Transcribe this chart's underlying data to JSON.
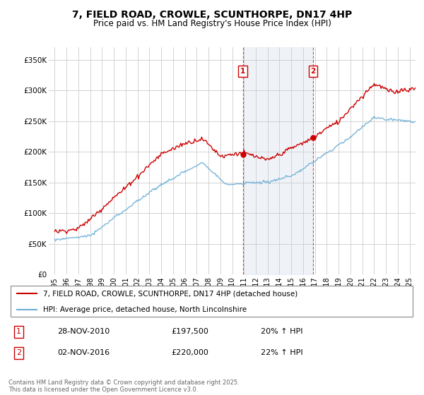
{
  "title": "7, FIELD ROAD, CROWLE, SCUNTHORPE, DN17 4HP",
  "subtitle": "Price paid vs. HM Land Registry's House Price Index (HPI)",
  "title_fontsize": 10,
  "subtitle_fontsize": 8.5,
  "background_color": "#ffffff",
  "plot_bg_color": "#ffffff",
  "grid_color": "#cccccc",
  "ylabel_ticks": [
    "£0",
    "£50K",
    "£100K",
    "£150K",
    "£200K",
    "£250K",
    "£300K",
    "£350K"
  ],
  "ytick_values": [
    0,
    50000,
    100000,
    150000,
    200000,
    250000,
    300000,
    350000
  ],
  "ylim": [
    0,
    370000
  ],
  "xlim_start": 1994.5,
  "xlim_end": 2025.5,
  "xtick_years": [
    1995,
    1996,
    1997,
    1998,
    1999,
    2000,
    2001,
    2002,
    2003,
    2004,
    2005,
    2006,
    2007,
    2008,
    2009,
    2010,
    2011,
    2012,
    2013,
    2014,
    2015,
    2016,
    2017,
    2018,
    2019,
    2020,
    2021,
    2022,
    2023,
    2024,
    2025
  ],
  "hpi_line_color": "#6baed6",
  "price_line_color": "#cc0000",
  "vline_color": "#cc0000",
  "vline_style": "--",
  "sale1_x": 2010.9,
  "sale1_label": "1",
  "sale1_price": 197500,
  "sale2_x": 2016.83,
  "sale2_label": "2",
  "sale2_price": 220000,
  "annotation_box_color": "#ffffff",
  "annotation_border_color": "#cc0000",
  "shaded_region_color": "#dce6f1",
  "shaded_region_alpha": 0.45,
  "legend_line1": "7, FIELD ROAD, CROWLE, SCUNTHORPE, DN17 4HP (detached house)",
  "legend_line2": "HPI: Average price, detached house, North Lincolnshire",
  "info1_num": "1",
  "info1_date": "28-NOV-2010",
  "info1_price": "£197,500",
  "info1_change": "20% ↑ HPI",
  "info2_num": "2",
  "info2_date": "02-NOV-2016",
  "info2_price": "£220,000",
  "info2_change": "22% ↑ HPI",
  "footer": "Contains HM Land Registry data © Crown copyright and database right 2025.\nThis data is licensed under the Open Government Licence v3.0."
}
